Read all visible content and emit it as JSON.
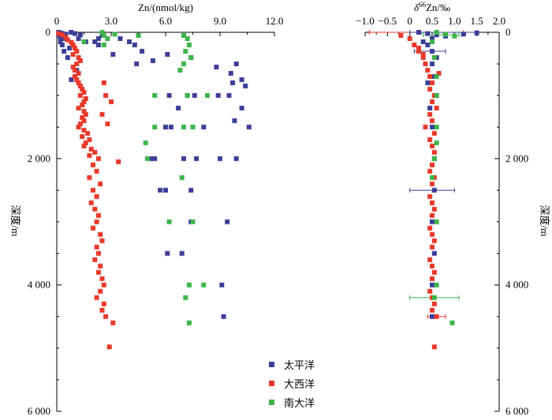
{
  "colors": {
    "pacific": "#3b3f98",
    "atlantic": "#e8392a",
    "southern": "#3cb54a"
  },
  "chart_data": [
    {
      "type": "scatter",
      "title": "",
      "xlabel": "Zn/(nmol/kg)",
      "ylabel": "深度/m",
      "xlim": [
        0,
        12
      ],
      "ylim": [
        6000,
        0
      ],
      "xticks": [
        "0",
        "3.0",
        "6.0",
        "9.0",
        "12.0"
      ],
      "yticks": [
        "0",
        "2 000",
        "4 000",
        "6 000"
      ],
      "series": [
        {
          "name": "太平洋",
          "color_key": "pacific",
          "points": [
            [
              0.1,
              0
            ],
            [
              0.2,
              10
            ],
            [
              0.3,
              20
            ],
            [
              0.1,
              50
            ],
            [
              0.2,
              80
            ],
            [
              0.5,
              30
            ],
            [
              0.8,
              0
            ],
            [
              1.0,
              20
            ],
            [
              1.3,
              40
            ],
            [
              0.4,
              100
            ],
            [
              0.2,
              150
            ],
            [
              0.3,
              200
            ],
            [
              0.4,
              300
            ],
            [
              0.6,
              400
            ],
            [
              0.7,
              250
            ],
            [
              1.2,
              100
            ],
            [
              1.6,
              150
            ],
            [
              2.3,
              200
            ],
            [
              2.1,
              150
            ],
            [
              2.3,
              100
            ],
            [
              2.5,
              50
            ],
            [
              3.5,
              100
            ],
            [
              4.0,
              150
            ],
            [
              4.3,
              200
            ],
            [
              4.7,
              300
            ],
            [
              3.1,
              350
            ],
            [
              4.4,
              500
            ],
            [
              5.3,
              450
            ],
            [
              6.1,
              350
            ],
            [
              7.4,
              400
            ],
            [
              8.8,
              550
            ],
            [
              9.6,
              650
            ],
            [
              9.9,
              500
            ],
            [
              10.2,
              750
            ],
            [
              10.4,
              850
            ],
            [
              9.7,
              800
            ],
            [
              9.5,
              1000
            ],
            [
              8.9,
              1000
            ],
            [
              7.6,
              1000
            ],
            [
              7.2,
              1000
            ],
            [
              6.2,
              1000
            ],
            [
              6.0,
              1500
            ],
            [
              6.3,
              1500
            ],
            [
              6.7,
              1200
            ],
            [
              8.1,
              1500
            ],
            [
              10.2,
              1200
            ],
            [
              10.6,
              1500
            ],
            [
              9.8,
              1400
            ],
            [
              9.0,
              2000
            ],
            [
              9.9,
              2000
            ],
            [
              7.0,
              2000
            ],
            [
              7.7,
              2000
            ],
            [
              5.2,
              2000
            ],
            [
              5.4,
              2000
            ],
            [
              6.0,
              2500
            ],
            [
              5.7,
              2500
            ],
            [
              7.4,
              2500
            ],
            [
              7.4,
              3000
            ],
            [
              9.4,
              3000
            ],
            [
              6.1,
              3500
            ],
            [
              6.9,
              3500
            ],
            [
              9.1,
              4000
            ],
            [
              9.2,
              4500
            ],
            [
              0.8,
              750
            ],
            [
              1.1,
              600
            ]
          ]
        },
        {
          "name": "大西洋",
          "color_key": "atlantic",
          "points": [
            [
              0.1,
              20
            ],
            [
              0.3,
              40
            ],
            [
              0.5,
              80
            ],
            [
              0.6,
              120
            ],
            [
              0.8,
              160
            ],
            [
              0.9,
              200
            ],
            [
              1.0,
              250
            ],
            [
              1.1,
              300
            ],
            [
              0.9,
              350
            ],
            [
              1.2,
              400
            ],
            [
              1.3,
              450
            ],
            [
              1.1,
              500
            ],
            [
              0.9,
              550
            ],
            [
              1.0,
              600
            ],
            [
              1.2,
              650
            ],
            [
              1.0,
              700
            ],
            [
              1.1,
              750
            ],
            [
              1.2,
              800
            ],
            [
              1.3,
              850
            ],
            [
              1.4,
              900
            ],
            [
              1.5,
              950
            ],
            [
              1.3,
              1000
            ],
            [
              1.6,
              1050
            ],
            [
              1.5,
              1100
            ],
            [
              1.4,
              1150
            ],
            [
              1.2,
              1200
            ],
            [
              1.5,
              1250
            ],
            [
              1.6,
              1300
            ],
            [
              1.4,
              1350
            ],
            [
              1.5,
              1400
            ],
            [
              1.3,
              1450
            ],
            [
              1.2,
              1500
            ],
            [
              1.5,
              1550
            ],
            [
              1.7,
              1600
            ],
            [
              1.4,
              1650
            ],
            [
              1.8,
              1700
            ],
            [
              1.6,
              1750
            ],
            [
              1.5,
              1800
            ],
            [
              1.9,
              1850
            ],
            [
              2.1,
              1900
            ],
            [
              1.8,
              1950
            ],
            [
              2.3,
              2000
            ],
            [
              2.0,
              2100
            ],
            [
              2.2,
              2200
            ],
            [
              1.8,
              2300
            ],
            [
              2.4,
              2400
            ],
            [
              2.0,
              2500
            ],
            [
              2.2,
              2600
            ],
            [
              1.9,
              2700
            ],
            [
              2.1,
              2800
            ],
            [
              2.3,
              2900
            ],
            [
              2.2,
              3000
            ],
            [
              2.0,
              3100
            ],
            [
              2.4,
              3200
            ],
            [
              2.5,
              3300
            ],
            [
              2.2,
              3400
            ],
            [
              2.3,
              3500
            ],
            [
              2.1,
              3600
            ],
            [
              2.4,
              3700
            ],
            [
              2.3,
              3800
            ],
            [
              2.5,
              3900
            ],
            [
              2.6,
              4000
            ],
            [
              2.4,
              4100
            ],
            [
              2.2,
              4200
            ],
            [
              2.6,
              4300
            ],
            [
              2.5,
              4400
            ],
            [
              2.7,
              4500
            ],
            [
              3.1,
              4600
            ],
            [
              2.9,
              4980
            ],
            [
              3.4,
              2050
            ],
            [
              2.8,
              1450
            ],
            [
              2.5,
              1300
            ],
            [
              2.7,
              1000
            ],
            [
              3.0,
              1100
            ],
            [
              2.6,
              800
            ]
          ]
        },
        {
          "name": "南大洋",
          "color_key": "southern",
          "points": [
            [
              2.5,
              0
            ],
            [
              2.6,
              50
            ],
            [
              2.8,
              100
            ],
            [
              3.2,
              30
            ],
            [
              4.5,
              50
            ],
            [
              7.0,
              50
            ],
            [
              7.2,
              100
            ],
            [
              7.3,
              200
            ],
            [
              7.1,
              300
            ],
            [
              7.4,
              400
            ],
            [
              7.0,
              500
            ],
            [
              6.8,
              600
            ],
            [
              5.4,
              1000
            ],
            [
              7.2,
              1000
            ],
            [
              8.3,
              1000
            ],
            [
              5.4,
              1500
            ],
            [
              7.0,
              1500
            ],
            [
              7.5,
              1500
            ],
            [
              4.9,
              1750
            ],
            [
              5.0,
              2000
            ],
            [
              6.9,
              2300
            ],
            [
              6.2,
              3000
            ],
            [
              7.5,
              3000
            ],
            [
              7.3,
              4000
            ],
            [
              8.1,
              4000
            ],
            [
              7.1,
              4200
            ],
            [
              7.3,
              4600
            ],
            [
              2.6,
              200
            ],
            [
              1.5,
              150
            ]
          ]
        }
      ]
    },
    {
      "type": "scatter",
      "title": "",
      "xlabel": "δ66Zn/‰",
      "ylabel": "深度/m",
      "xlim": [
        -1.0,
        2.0
      ],
      "ylim": [
        6000,
        0
      ],
      "xticks": [
        "−1.0",
        "−0.5",
        "0",
        "0.5",
        "1.0",
        "1.5",
        "2.0"
      ],
      "yticks": [
        "0",
        "2 000",
        "4 000",
        "6 000"
      ],
      "series": [
        {
          "name": "太平洋",
          "color_key": "pacific",
          "points": [
            [
              0.2,
              0
            ],
            [
              0.4,
              20
            ],
            [
              0.6,
              40
            ],
            [
              0.8,
              60
            ],
            [
              1.2,
              30
            ],
            [
              1.5,
              10
            ],
            [
              0.5,
              100
            ],
            [
              0.3,
              150
            ],
            [
              0.4,
              200
            ],
            [
              0.5,
              300
            ],
            [
              0.6,
              400
            ],
            [
              0.5,
              500
            ],
            [
              0.55,
              700
            ],
            [
              0.6,
              1000
            ],
            [
              0.5,
              1500
            ],
            [
              0.55,
              2000
            ],
            [
              0.55,
              2500
            ],
            [
              0.5,
              3000
            ],
            [
              0.55,
              3500
            ],
            [
              0.5,
              4000
            ],
            [
              0.5,
              4500
            ],
            [
              0.4,
              800
            ],
            [
              0.45,
              1200
            ]
          ]
        },
        {
          "name": "大西洋",
          "color_key": "atlantic",
          "points": [
            [
              -0.2,
              50
            ],
            [
              0.0,
              100
            ],
            [
              0.1,
              200
            ],
            [
              0.2,
              300
            ],
            [
              0.3,
              400
            ],
            [
              0.35,
              500
            ],
            [
              0.4,
              600
            ],
            [
              0.45,
              700
            ],
            [
              0.5,
              800
            ],
            [
              0.45,
              900
            ],
            [
              0.55,
              1000
            ],
            [
              0.5,
              1100
            ],
            [
              0.6,
              1200
            ],
            [
              0.45,
              1300
            ],
            [
              0.5,
              1400
            ],
            [
              0.55,
              1600
            ],
            [
              0.45,
              1700
            ],
            [
              0.5,
              1800
            ],
            [
              0.55,
              1900
            ],
            [
              0.5,
              2100
            ],
            [
              0.45,
              2200
            ],
            [
              0.55,
              2300
            ],
            [
              0.5,
              2400
            ],
            [
              0.45,
              2600
            ],
            [
              0.5,
              2700
            ],
            [
              0.55,
              2800
            ],
            [
              0.5,
              2900
            ],
            [
              0.45,
              3100
            ],
            [
              0.5,
              3200
            ],
            [
              0.55,
              3300
            ],
            [
              0.5,
              3400
            ],
            [
              0.45,
              3600
            ],
            [
              0.5,
              3700
            ],
            [
              0.55,
              3800
            ],
            [
              0.5,
              3900
            ],
            [
              0.45,
              4100
            ],
            [
              0.5,
              4200
            ],
            [
              0.55,
              4300
            ],
            [
              0.5,
              4400
            ],
            [
              0.6,
              4500
            ],
            [
              0.55,
              4980
            ],
            [
              0.2,
              250
            ],
            [
              0.3,
              350
            ],
            [
              0.65,
              650
            ],
            [
              0.35,
              1500
            ]
          ]
        },
        {
          "name": "南大洋",
          "color_key": "southern",
          "points": [
            [
              0.6,
              0
            ],
            [
              0.8,
              30
            ],
            [
              1.0,
              60
            ],
            [
              0.5,
              150
            ],
            [
              0.55,
              400
            ],
            [
              0.6,
              1000
            ],
            [
              0.6,
              1500
            ],
            [
              0.6,
              1750
            ],
            [
              0.55,
              2000
            ],
            [
              0.5,
              2300
            ],
            [
              0.6,
              3000
            ],
            [
              0.6,
              4000
            ],
            [
              0.55,
              4200
            ],
            [
              0.95,
              4600
            ],
            [
              0.6,
              700
            ]
          ]
        }
      ]
    }
  ],
  "legend": {
    "items": [
      "太平洋",
      "大西洋",
      "南大洋"
    ],
    "placement": "bottom-center"
  }
}
